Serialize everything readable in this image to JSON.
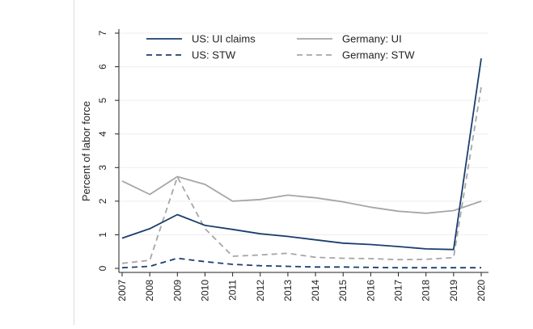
{
  "chart_data": {
    "type": "line",
    "title": "",
    "xlabel": "",
    "ylabel": "Percent of labor force",
    "x": [
      2007,
      2008,
      2009,
      2010,
      2011,
      2012,
      2013,
      2014,
      2015,
      2016,
      2017,
      2018,
      2019,
      2020
    ],
    "xticks": [
      "2007",
      "2008",
      "2009",
      "2010",
      "2011",
      "2012",
      "2013",
      "2014",
      "2015",
      "2016",
      "2017",
      "2018",
      "2019",
      "2020"
    ],
    "ylim": [
      0,
      7
    ],
    "yticks": [
      "0",
      "1",
      "2",
      "3",
      "4",
      "5",
      "6",
      "7"
    ],
    "grid": true,
    "legend_position": "top",
    "series": [
      {
        "name": "US: UI claims",
        "color": "#1b3f6e",
        "style": "solid",
        "values": [
          0.9,
          1.18,
          1.6,
          1.28,
          1.16,
          1.03,
          0.95,
          0.85,
          0.75,
          0.71,
          0.65,
          0.58,
          0.56,
          6.25
        ]
      },
      {
        "name": "Germany: UI",
        "color": "#a6a6a6",
        "style": "solid",
        "values": [
          2.6,
          2.2,
          2.73,
          2.5,
          2.0,
          2.05,
          2.18,
          2.1,
          1.98,
          1.82,
          1.7,
          1.64,
          1.72,
          2.0
        ]
      },
      {
        "name": "US: STW",
        "color": "#1b3f6e",
        "style": "dashed",
        "values": [
          0.02,
          0.06,
          0.3,
          0.2,
          0.12,
          0.08,
          0.06,
          0.04,
          0.04,
          0.03,
          0.02,
          0.02,
          0.02,
          0.02
        ]
      },
      {
        "name": "Germany: STW",
        "color": "#a6a6a6",
        "style": "dashed",
        "values": [
          0.15,
          0.24,
          2.72,
          1.18,
          0.36,
          0.4,
          0.45,
          0.33,
          0.3,
          0.29,
          0.26,
          0.27,
          0.32,
          5.4
        ]
      }
    ]
  }
}
